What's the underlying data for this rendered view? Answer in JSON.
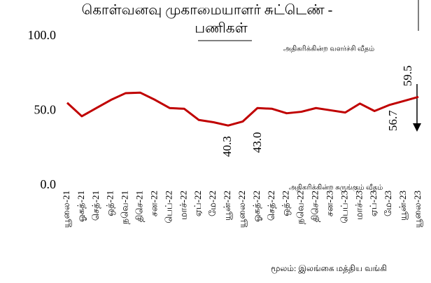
{
  "chart_data": {
    "type": "line",
    "title": [
      "கொள்வனவு முகாமையாளர் சுட்டெண் -",
      "பணிகள்"
    ],
    "categories": [
      "யூலை-21",
      "ஓகத்-21",
      "செத்-21",
      "ஒத்-21",
      "நவெ-21",
      "திசெ-21",
      "சன-22",
      "பெப்-22",
      "மாச்-22",
      "ஏப்-22",
      "மே-22",
      "யூன்-22",
      "யூலை-22",
      "ஓகத்-22",
      "செத்-22",
      "ஒத்-22",
      "நவெ-22",
      "திசெ-22",
      "சன-23",
      "பெப்-23",
      "மாச்-23",
      "ஏப்-23",
      "மே-23",
      "யூன்-23",
      "யூலை-23"
    ],
    "values": [
      55.5,
      46.5,
      52,
      57.5,
      62,
      62.3,
      57.5,
      52,
      51.5,
      44,
      42.5,
      40.3,
      43.0,
      52,
      51.5,
      48.5,
      49.5,
      52,
      50.5,
      49,
      55,
      50,
      54,
      56.7,
      59.5
    ],
    "value_labels": [
      null,
      null,
      null,
      null,
      null,
      null,
      null,
      null,
      null,
      null,
      null,
      "40.3",
      "43.0",
      null,
      null,
      null,
      null,
      null,
      null,
      null,
      null,
      null,
      null,
      "56.7",
      "59.5"
    ],
    "color": "#c00000",
    "ylim": [
      0,
      100
    ],
    "yticks": [
      {
        "value": 0,
        "label": "0.0"
      },
      {
        "value": 50,
        "label": "50.0"
      },
      {
        "value": 100,
        "label": "100.0"
      }
    ],
    "annotations": [
      "அதிகரிக்கின்ற வளர்ச்சி வீதம்",
      "அதிகரிக்கின்ற சுருங்கும் வீதம்"
    ],
    "source": "மூலம்: இலங்கை மத்திய வங்கி"
  }
}
